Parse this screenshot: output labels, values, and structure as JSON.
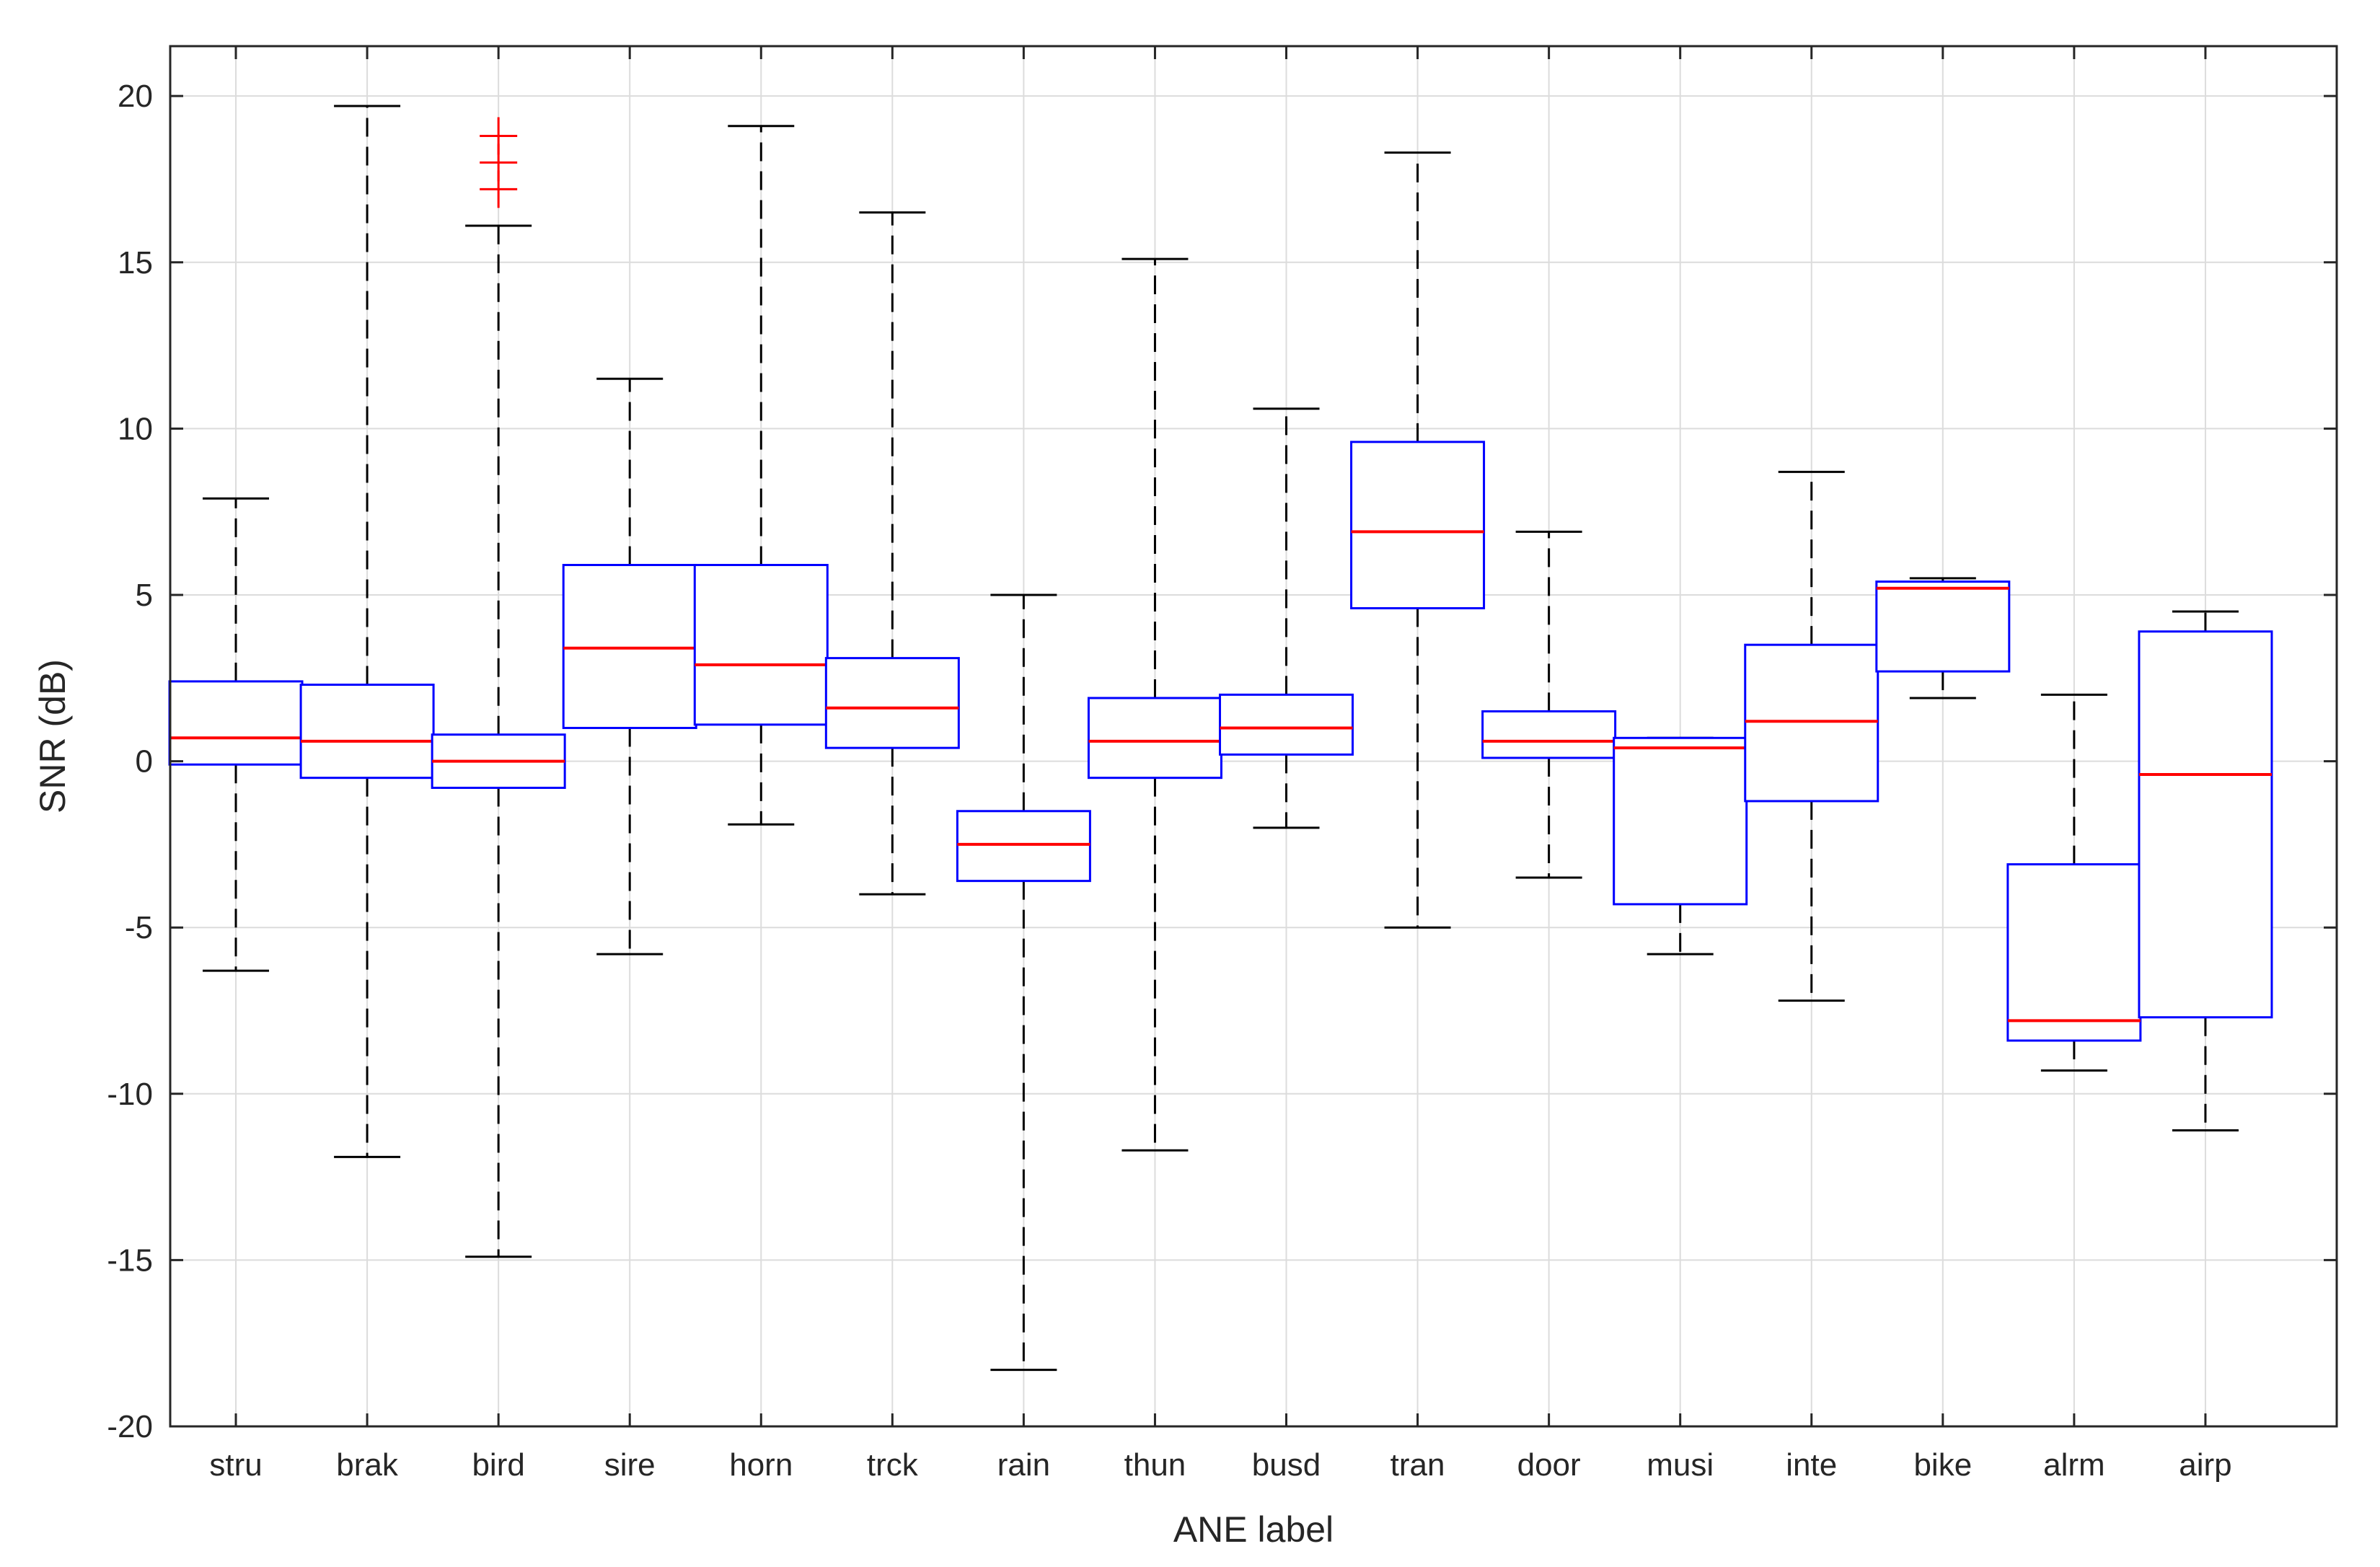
{
  "chart_data": {
    "type": "box",
    "xlabel": "ANE label",
    "ylabel": "SNR (dB)",
    "ylim": [
      -20,
      21.5
    ],
    "yticks": [
      20,
      15,
      10,
      5,
      0,
      -5,
      -10,
      -15,
      -20
    ],
    "grid": true,
    "categories": [
      "stru",
      "brak",
      "bird",
      "sire",
      "horn",
      "trck",
      "rain",
      "thun",
      "busd",
      "tran",
      "door",
      "musi",
      "inte",
      "bike",
      "alrm",
      "airp"
    ],
    "boxes": [
      {
        "label": "stru",
        "whisker_low": -6.3,
        "q1": -0.1,
        "median": 0.7,
        "q3": 2.4,
        "whisker_high": 7.9,
        "outliers": []
      },
      {
        "label": "brak",
        "whisker_low": -11.9,
        "q1": -0.5,
        "median": 0.6,
        "q3": 2.3,
        "whisker_high": 19.7,
        "outliers": []
      },
      {
        "label": "bird",
        "whisker_low": -14.9,
        "q1": -0.8,
        "median": 0.0,
        "q3": 0.8,
        "whisker_high": 16.1,
        "outliers": [
          17.2,
          18.0,
          18.8
        ]
      },
      {
        "label": "sire",
        "whisker_low": -5.8,
        "q1": 1.0,
        "median": 3.4,
        "q3": 5.9,
        "whisker_high": 11.5,
        "outliers": []
      },
      {
        "label": "horn",
        "whisker_low": -1.9,
        "q1": 1.1,
        "median": 2.9,
        "q3": 5.9,
        "whisker_high": 19.1,
        "outliers": []
      },
      {
        "label": "trck",
        "whisker_low": -4.0,
        "q1": 0.4,
        "median": 1.6,
        "q3": 3.1,
        "whisker_high": 16.5,
        "outliers": []
      },
      {
        "label": "rain",
        "whisker_low": -18.3,
        "q1": -3.6,
        "median": -2.5,
        "q3": -1.5,
        "whisker_high": 5.0,
        "outliers": []
      },
      {
        "label": "thun",
        "whisker_low": -11.7,
        "q1": -0.5,
        "median": 0.6,
        "q3": 1.9,
        "whisker_high": 15.1,
        "outliers": []
      },
      {
        "label": "busd",
        "whisker_low": -2.0,
        "q1": 0.2,
        "median": 1.0,
        "q3": 2.0,
        "whisker_high": 10.6,
        "outliers": []
      },
      {
        "label": "tran",
        "whisker_low": -5.0,
        "q1": 4.6,
        "median": 6.9,
        "q3": 9.6,
        "whisker_high": 18.3,
        "outliers": []
      },
      {
        "label": "door",
        "whisker_low": -3.5,
        "q1": 0.1,
        "median": 0.6,
        "q3": 1.5,
        "whisker_high": 6.9,
        "outliers": []
      },
      {
        "label": "musi",
        "whisker_low": -5.8,
        "q1": -4.3,
        "median": 0.4,
        "q3": 0.7,
        "whisker_high": 0.7,
        "outliers": []
      },
      {
        "label": "inte",
        "whisker_low": -7.2,
        "q1": -1.2,
        "median": 1.2,
        "q3": 3.5,
        "whisker_high": 8.7,
        "outliers": []
      },
      {
        "label": "bike",
        "whisker_low": 1.9,
        "q1": 2.7,
        "median": 5.2,
        "q3": 5.4,
        "whisker_high": 5.5,
        "outliers": []
      },
      {
        "label": "alrm",
        "whisker_low": -9.3,
        "q1": -8.4,
        "median": -7.8,
        "q3": -3.1,
        "whisker_high": 2.0,
        "outliers": []
      },
      {
        "label": "airp",
        "whisker_low": -11.1,
        "q1": -7.7,
        "median": -0.4,
        "q3": 3.9,
        "whisker_high": 4.5,
        "outliers": []
      }
    ],
    "colors": {
      "box": "#0000ff",
      "median": "#ff0000",
      "whisker": "#000000",
      "outlier": "#ff0000",
      "grid": "#dcdcdc",
      "axis": "#262626"
    }
  }
}
